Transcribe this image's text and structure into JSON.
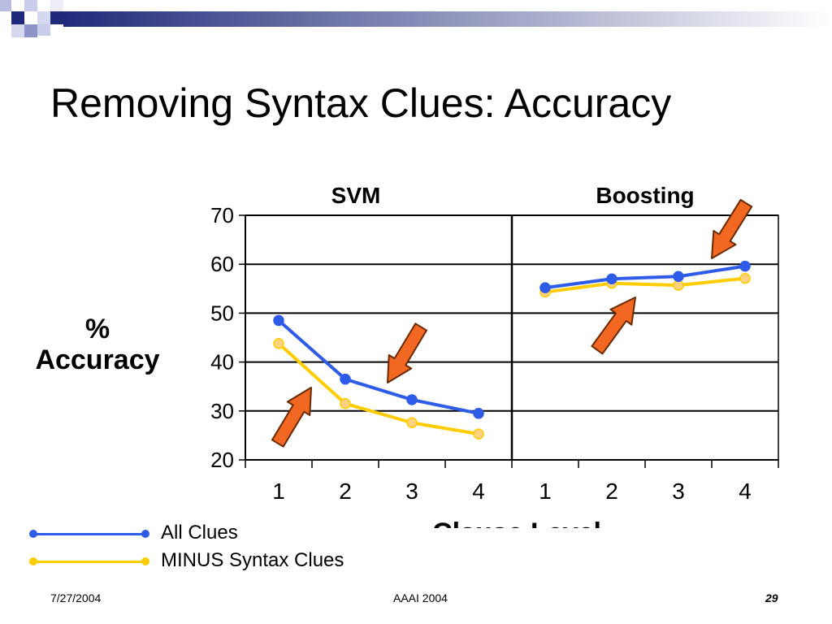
{
  "slide": {
    "title": "Removing Syntax Clues: Accuracy",
    "footer": {
      "date": "7/27/2004",
      "event": "AAAI 2004",
      "page": "29"
    }
  },
  "chart_data": {
    "type": "line",
    "panels": [
      {
        "title": "SVM",
        "categories": [
          "1",
          "2",
          "3",
          "4"
        ]
      },
      {
        "title": "Boosting",
        "categories": [
          "1",
          "2",
          "3",
          "4"
        ]
      }
    ],
    "xlabel": "Clause Level",
    "ylabel": [
      "%",
      "Accuracy"
    ],
    "ylim": [
      20,
      70
    ],
    "yticks": [
      20,
      30,
      40,
      50,
      60,
      70
    ],
    "grid": true,
    "legend_position": "bottom-left",
    "series": [
      {
        "name": "All Clues",
        "color": "#2E5BE8",
        "panels": [
          [
            48.5,
            36.5,
            32.3,
            29.5
          ],
          [
            55.2,
            57.0,
            57.5,
            59.6
          ]
        ]
      },
      {
        "name": "MINUS Syntax Clues",
        "color": "#FFCC00",
        "panels": [
          [
            43.8,
            31.5,
            27.6,
            25.3
          ],
          [
            54.3,
            56.1,
            55.7,
            57.1
          ]
        ]
      }
    ],
    "annotations": {
      "arrows": 4,
      "arrow_color": "#F26722"
    }
  }
}
